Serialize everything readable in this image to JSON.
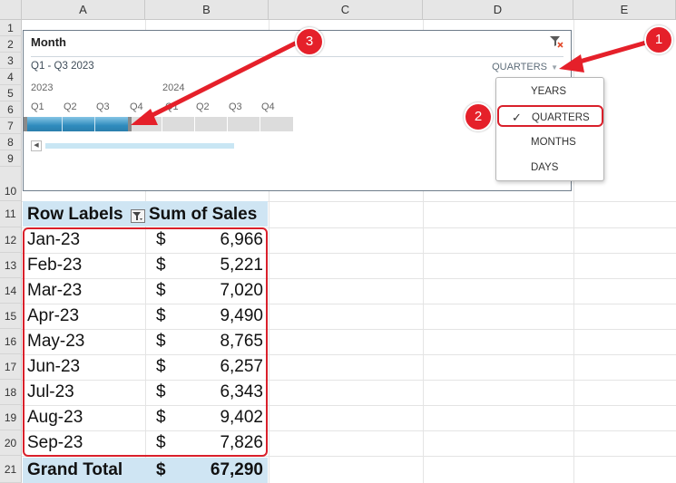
{
  "columns": [
    "A",
    "B",
    "C",
    "D",
    "E"
  ],
  "rows": [
    "1",
    "2",
    "3",
    "4",
    "5",
    "6",
    "7",
    "8",
    "9",
    "10",
    "11",
    "12",
    "13",
    "14",
    "15",
    "16",
    "17",
    "18",
    "19",
    "20",
    "21"
  ],
  "slicer": {
    "title": "Month",
    "range_label": "Q1 - Q3 2023",
    "level_label": "QUARTERS",
    "years": [
      "2023",
      "2024"
    ],
    "quarters": [
      "Q1",
      "Q2",
      "Q3",
      "Q4",
      "Q1",
      "Q2",
      "Q3",
      "Q4"
    ],
    "selected_quarters": 3
  },
  "level_menu": {
    "items": [
      "YEARS",
      "QUARTERS",
      "MONTHS",
      "DAYS"
    ],
    "selected": "QUARTERS",
    "check": "✓"
  },
  "pivot": {
    "header_row_labels": "Row Labels",
    "header_sum": "Sum of Sales",
    "currency": "$",
    "rows": [
      {
        "label": "Jan-23",
        "value": "6,966"
      },
      {
        "label": "Feb-23",
        "value": "5,221"
      },
      {
        "label": "Mar-23",
        "value": "7,020"
      },
      {
        "label": "Apr-23",
        "value": "9,490"
      },
      {
        "label": "May-23",
        "value": "8,765"
      },
      {
        "label": "Jun-23",
        "value": "6,257"
      },
      {
        "label": "Jul-23",
        "value": "6,343"
      },
      {
        "label": "Aug-23",
        "value": "9,402"
      },
      {
        "label": "Sep-23",
        "value": "7,826"
      }
    ],
    "total_label": "Grand Total",
    "total_value": "67,290"
  },
  "callouts": [
    "1",
    "2",
    "3"
  ],
  "colors": {
    "callout_red": "#e5202a",
    "selection_blue": "#2f8bbd",
    "pivot_header_bg": "#cfe5f3"
  }
}
